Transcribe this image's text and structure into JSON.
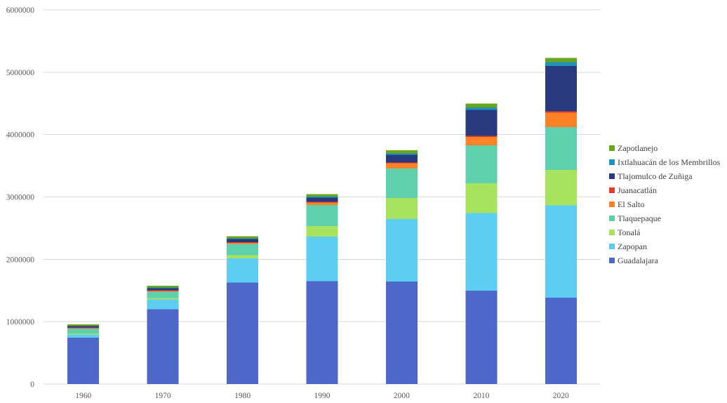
{
  "chart_data": {
    "type": "bar",
    "stacked": true,
    "title": "",
    "xlabel": "",
    "ylabel": "",
    "grid": true,
    "legend_position": "right",
    "ylim": [
      0,
      6000000
    ],
    "ytick_step": 1000000,
    "yticks": [
      "0",
      "1000000",
      "2000000",
      "3000000",
      "4000000",
      "5000000",
      "6000000"
    ],
    "categories": [
      "1960",
      "1970",
      "1980",
      "1990",
      "2000",
      "2010",
      "2020"
    ],
    "series": [
      {
        "name": "Guadalajara",
        "color": "#4d68c8",
        "values": [
          740394,
          1199391,
          1626152,
          1650205,
          1646319,
          1495189,
          1385629
        ]
      },
      {
        "name": "Zapopan",
        "color": "#5ecdf2",
        "values": [
          54562,
          155488,
          389081,
          712008,
          1001021,
          1243756,
          1476491
        ]
      },
      {
        "name": "Tonalá",
        "color": "#a7e35e",
        "values": [
          15727,
          24648,
          52158,
          168555,
          337149,
          478689,
          569913
        ]
      },
      {
        "name": "Tlaquepaque",
        "color": "#5fd0ad",
        "values": [
          76865,
          100945,
          177324,
          339649,
          474178,
          608114,
          687127
        ]
      },
      {
        "name": "El Salto",
        "color": "#fd8127",
        "values": [
          10037,
          12367,
          19887,
          38281,
          83453,
          138226,
          234013
        ]
      },
      {
        "name": "Juanacatlán",
        "color": "#e63c2a",
        "values": [
          6203,
          8081,
          8584,
          10068,
          11792,
          13218,
          17955
        ]
      },
      {
        "name": "Tlajomulco de Zuñiga",
        "color": "#28397d",
        "values": [
          25572,
          35145,
          50697,
          68428,
          123619,
          416626,
          727750
        ]
      },
      {
        "name": "Ixtlahuacán de los Membrillos",
        "color": "#1d93b9",
        "values": [
          7288,
          10292,
          12310,
          16674,
          21605,
          41060,
          60125
        ]
      },
      {
        "name": "Zapotlanejo",
        "color": "#69a61e",
        "values": [
          20149,
          26987,
          35000,
          42461,
          47535,
          63636,
          68519
        ]
      }
    ]
  },
  "colors": {
    "background": "#ffffff",
    "gridline": "#d9d9d9",
    "axis_text": "#595959",
    "legend_text": "#404040"
  }
}
